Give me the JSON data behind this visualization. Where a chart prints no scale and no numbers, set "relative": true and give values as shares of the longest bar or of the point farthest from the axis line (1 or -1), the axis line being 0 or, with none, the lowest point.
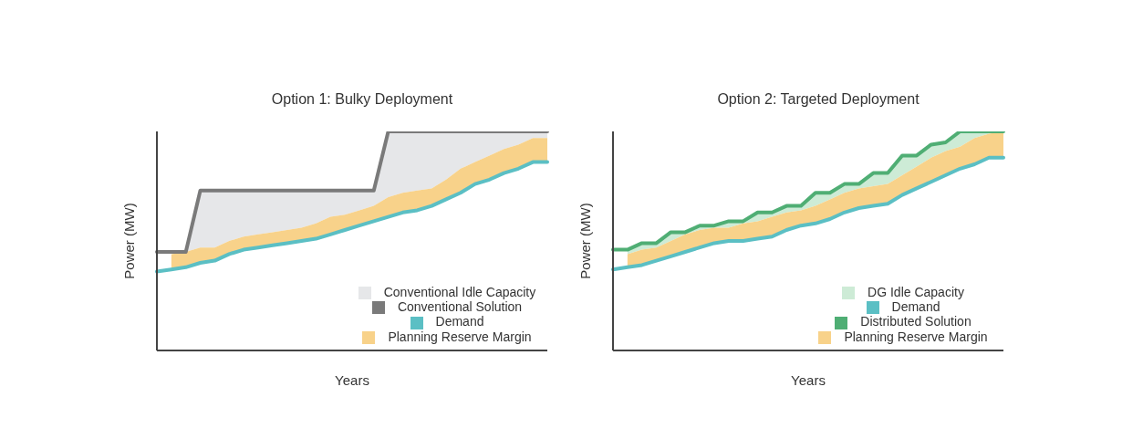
{
  "chart_data": [
    {
      "type": "line",
      "title": "Option 1: Bulky Deployment",
      "xlabel": "Years",
      "ylabel": "Power (MW)",
      "relative": true,
      "legend": "bottom right",
      "categories": [
        null,
        null,
        null,
        null,
        null,
        null,
        null,
        null,
        null,
        null,
        null,
        null,
        null,
        null,
        null,
        null,
        null,
        null,
        null,
        null,
        null,
        null,
        null,
        null,
        null,
        null,
        null,
        null
      ],
      "series": [
        {
          "name": "Conventional Solution",
          "color": "#7a7a7a",
          "values": [
            0.45,
            0.45,
            0.45,
            0.73,
            0.73,
            0.73,
            0.73,
            0.73,
            0.73,
            0.73,
            0.73,
            0.73,
            0.73,
            0.73,
            0.73,
            0.73,
            1,
            1,
            1,
            1,
            1,
            1,
            1,
            1,
            1,
            1,
            1,
            1
          ]
        },
        {
          "name": "Conventional Idle Capacity",
          "type": "area",
          "color": "#e6e7e9",
          "values": [
            null,
            null,
            0.45,
            0.73,
            0.73,
            0.73,
            0.73,
            0.73,
            0.73,
            0.73,
            0.73,
            0.73,
            0.73,
            0.73,
            0.73,
            0.73,
            1,
            1,
            1,
            1,
            1,
            1,
            1,
            1,
            1,
            1,
            1,
            1
          ]
        },
        {
          "name": "Planning Reserve Margin",
          "type": "area",
          "color": "#f8d28a",
          "values": [
            null,
            0.44,
            0.45,
            0.47,
            0.47,
            0.5,
            0.52,
            0.53,
            0.54,
            0.55,
            0.56,
            0.58,
            0.61,
            0.62,
            0.64,
            0.66,
            0.7,
            0.72,
            0.73,
            0.74,
            0.78,
            0.83,
            0.86,
            0.89,
            0.92,
            0.94,
            0.97,
            0.97
          ]
        },
        {
          "name": "Demand",
          "color": "#5bbfc4",
          "values": [
            0.36,
            0.37,
            0.38,
            0.4,
            0.41,
            0.44,
            0.46,
            0.47,
            0.48,
            0.49,
            0.5,
            0.51,
            0.53,
            0.55,
            0.57,
            0.59,
            0.61,
            0.63,
            0.64,
            0.66,
            0.69,
            0.72,
            0.76,
            0.78,
            0.81,
            0.83,
            0.86,
            0.86
          ]
        }
      ]
    },
    {
      "type": "line",
      "title": "Option 2: Targeted Deployment",
      "xlabel": "Years",
      "ylabel": "Power (MW)",
      "relative": true,
      "legend": "bottom right",
      "categories": [
        null,
        null,
        null,
        null,
        null,
        null,
        null,
        null,
        null,
        null,
        null,
        null,
        null,
        null,
        null,
        null,
        null,
        null,
        null,
        null,
        null,
        null,
        null,
        null,
        null,
        null,
        null,
        null
      ],
      "series": [
        {
          "name": "Distributed Solution",
          "color": "#4fae74",
          "values": [
            0.46,
            0.46,
            0.49,
            0.49,
            0.54,
            0.54,
            0.57,
            0.57,
            0.59,
            0.59,
            0.63,
            0.63,
            0.66,
            0.66,
            0.72,
            0.72,
            0.76,
            0.76,
            0.81,
            0.81,
            0.89,
            0.89,
            0.94,
            0.95,
            1,
            1,
            1,
            1
          ]
        },
        {
          "name": "DG Idle Capacity",
          "type": "area",
          "color": "#cdebd6",
          "values": [
            null,
            0.46,
            0.49,
            0.49,
            0.54,
            0.54,
            0.57,
            0.57,
            0.59,
            0.59,
            0.63,
            0.63,
            0.66,
            0.66,
            0.72,
            0.72,
            0.76,
            0.76,
            0.81,
            0.81,
            0.89,
            0.89,
            0.94,
            0.95,
            1,
            1,
            1,
            1
          ]
        },
        {
          "name": "Planning Reserve Margin",
          "type": "area",
          "color": "#f8d28a",
          "values": [
            null,
            0.44,
            0.46,
            0.47,
            0.5,
            0.53,
            0.55,
            0.56,
            0.56,
            0.58,
            0.59,
            0.61,
            0.63,
            0.64,
            0.66,
            0.69,
            0.72,
            0.74,
            0.75,
            0.76,
            0.8,
            0.84,
            0.88,
            0.91,
            0.93,
            0.97,
            0.99,
            1
          ]
        },
        {
          "name": "Demand",
          "color": "#5bbfc4",
          "values": [
            0.37,
            0.38,
            0.39,
            0.41,
            0.43,
            0.45,
            0.47,
            0.49,
            0.5,
            0.5,
            0.51,
            0.52,
            0.55,
            0.57,
            0.58,
            0.6,
            0.63,
            0.65,
            0.66,
            0.67,
            0.71,
            0.74,
            0.77,
            0.8,
            0.83,
            0.85,
            0.88,
            0.88
          ]
        }
      ]
    }
  ]
}
